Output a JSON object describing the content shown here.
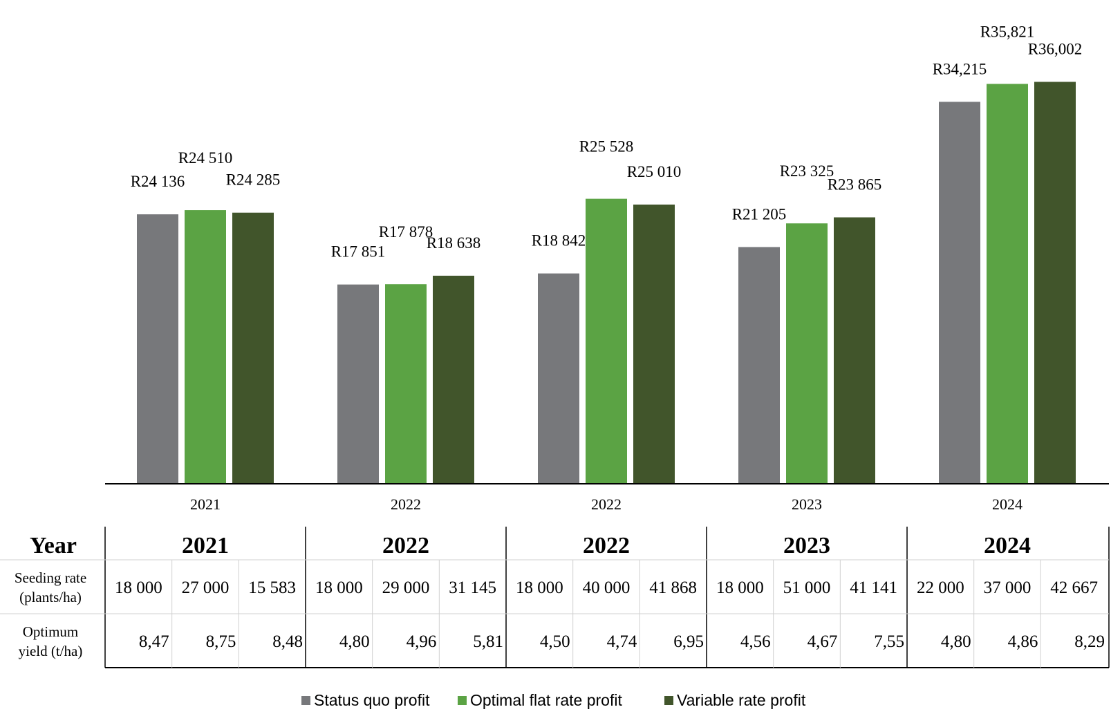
{
  "chart_data": {
    "type": "bar",
    "categories": [
      "2021",
      "2022",
      "2022",
      "2023",
      "2024"
    ],
    "series": [
      {
        "name": "Status quo profit",
        "color": "#77787b",
        "values": [
          24136,
          17851,
          18842,
          21205,
          34215
        ],
        "labels": [
          "R24 136",
          "R17 851",
          "R18 842",
          "R21 205",
          "R34,215"
        ]
      },
      {
        "name": "Optimal flat rate profit",
        "color": "#5ba344",
        "values": [
          24510,
          17878,
          25528,
          23325,
          35821
        ],
        "labels": [
          "R24 510",
          "R17 878",
          "R25 528",
          "R23 325",
          "R35,821"
        ]
      },
      {
        "name": "Variable rate profit",
        "color": "#41552b",
        "values": [
          24285,
          18638,
          25010,
          23865,
          36002
        ],
        "labels": [
          "R24 285",
          "R18 638",
          "R25 010",
          "R23 865",
          "R36,002"
        ]
      }
    ],
    "ylim": [
      0,
      39000
    ],
    "grid": false,
    "legend_position": "bottom-center",
    "table": {
      "header_label": "Year",
      "years": [
        "2021",
        "2022",
        "2022",
        "2023",
        "2024"
      ],
      "rows": [
        {
          "label": [
            "Seeding rate",
            "(plants/ha)"
          ],
          "values": [
            "18 000",
            "27 000",
            "15 583",
            "18 000",
            "29 000",
            "31 145",
            "18 000",
            "40 000",
            "41 868",
            "18 000",
            "51 000",
            "41 141",
            "22 000",
            "37 000",
            "42 667"
          ]
        },
        {
          "label": [
            "Optimum",
            "yield (t/ha)"
          ],
          "values": [
            "8,47",
            "8,75",
            "8,48",
            "4,80",
            "4,96",
            "5,81",
            "4,50",
            "4,74",
            "6,95",
            "4,56",
            "4,67",
            "7,55",
            "4,80",
            "4,86",
            "8,29"
          ]
        }
      ]
    }
  }
}
